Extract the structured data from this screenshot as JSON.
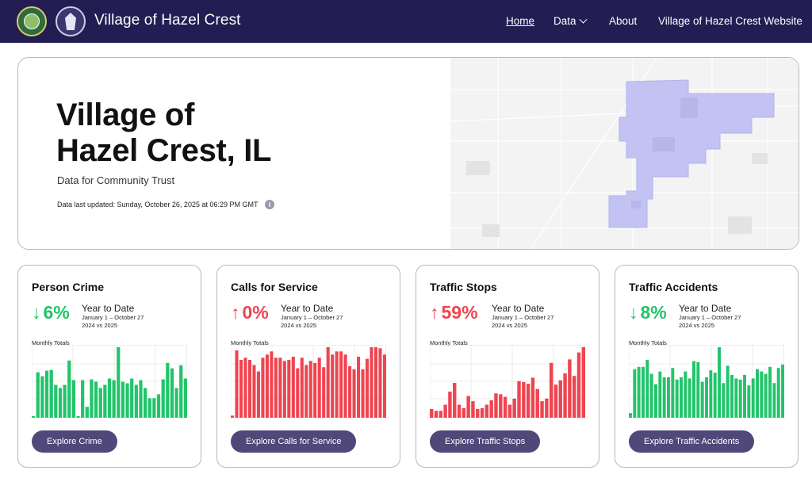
{
  "header": {
    "title": "Village of Hazel Crest",
    "nav": {
      "home": "Home",
      "data": "Data",
      "about": "About",
      "website": "Village of Hazel Crest Website"
    }
  },
  "hero": {
    "title_line1": "Village of",
    "title_line2": "Hazel Crest, IL",
    "subtitle": "Data for Community Trust",
    "updated": "Data last updated: Sunday, October 26, 2025 at 06:29 PM GMT"
  },
  "colors": {
    "green": "#22c46b",
    "red": "#ee4550",
    "nav_bg": "#221d52",
    "button": "#4f4878",
    "map_region": "#c3c3f3"
  },
  "cards": [
    {
      "title": "Person Crime",
      "direction": "down",
      "arrow": "↓",
      "pct": "6%",
      "ytd": "Year to Date",
      "range": "January 1 – October 27",
      "compare": "2024 vs 2025",
      "chart_label": "Monthly Totals",
      "button": "Explore Crime",
      "color": "green",
      "values": [
        2,
        58,
        53,
        60,
        61,
        42,
        38,
        42,
        73,
        48,
        2,
        48,
        14,
        49,
        46,
        38,
        42,
        50,
        48,
        90,
        46,
        44,
        50,
        42,
        48,
        38,
        25,
        25,
        30,
        49,
        70,
        63,
        38,
        67,
        50
      ]
    },
    {
      "title": "Calls for Service",
      "direction": "up",
      "arrow": "↑",
      "pct": "0%",
      "ytd": "Year to Date",
      "range": "January 1 – October 27",
      "compare": "2024 vs 2025",
      "chart_label": "Monthly Totals",
      "button": "Explore Calls for Service",
      "color": "red",
      "values": [
        2,
        64,
        55,
        57,
        55,
        50,
        44,
        57,
        60,
        63,
        57,
        57,
        54,
        55,
        58,
        47,
        57,
        50,
        54,
        52,
        57,
        48,
        67,
        60,
        63,
        63,
        60,
        49,
        46,
        58,
        46,
        56,
        67,
        67,
        66,
        60
      ]
    },
    {
      "title": "Traffic Stops",
      "direction": "up",
      "arrow": "↑",
      "pct": "59%",
      "ytd": "Year to Date",
      "range": "January 1 – October 27",
      "compare": "2024 vs 2025",
      "chart_label": "Monthly Totals",
      "button": "Explore Traffic Stops",
      "color": "red",
      "values": [
        10,
        8,
        8,
        15,
        30,
        40,
        15,
        11,
        25,
        19,
        10,
        11,
        15,
        20,
        28,
        27,
        24,
        15,
        22,
        42,
        41,
        39,
        46,
        33,
        19,
        22,
        63,
        38,
        43,
        51,
        67,
        48,
        75,
        81
      ]
    },
    {
      "title": "Traffic Accidents",
      "direction": "down",
      "arrow": "↓",
      "pct": "8%",
      "ytd": "Year to Date",
      "range": "January 1 – October 27",
      "compare": "2024 vs 2025",
      "chart_label": "Monthly Totals",
      "button": "Explore Traffic Accidents",
      "color": "green",
      "values": [
        4,
        42,
        44,
        44,
        50,
        38,
        29,
        40,
        35,
        35,
        43,
        33,
        35,
        40,
        34,
        49,
        48,
        31,
        35,
        41,
        39,
        61,
        30,
        45,
        37,
        34,
        33,
        37,
        28,
        34,
        42,
        40,
        38,
        44,
        30,
        43,
        46
      ]
    }
  ]
}
